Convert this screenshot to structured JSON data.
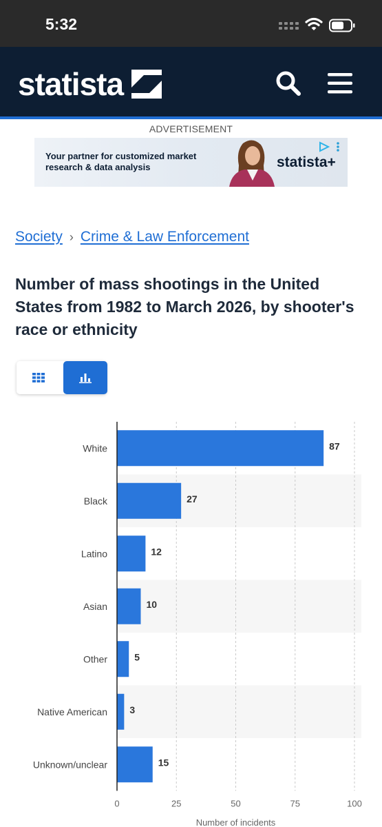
{
  "status_bar": {
    "time": "5:32"
  },
  "header": {
    "logo_text": "statista"
  },
  "ad": {
    "label": "ADVERTISEMENT",
    "copy": "Your partner for customized market research & data analysis",
    "brand": "statista+"
  },
  "breadcrumb": {
    "items": [
      "Society",
      "Crime & Law Enforcement"
    ],
    "separator": "›"
  },
  "title": "Number of mass shootings in the United States from 1982 to March 2026, by shooter's race or ethnicity",
  "colors": {
    "accent": "#1f6ed4",
    "header_bg": "#0d1e33",
    "bar": "#2a77dc"
  },
  "chart_data": {
    "type": "bar",
    "orientation": "horizontal",
    "categories": [
      "White",
      "Black",
      "Latino",
      "Asian",
      "Other",
      "Native American",
      "Unknown/unclear"
    ],
    "values": [
      87,
      27,
      12,
      10,
      5,
      3,
      15
    ],
    "xlabel": "Number of incidents",
    "xlim": [
      0,
      100
    ],
    "xticks": [
      0,
      25,
      50,
      75,
      100
    ],
    "grid": true
  }
}
